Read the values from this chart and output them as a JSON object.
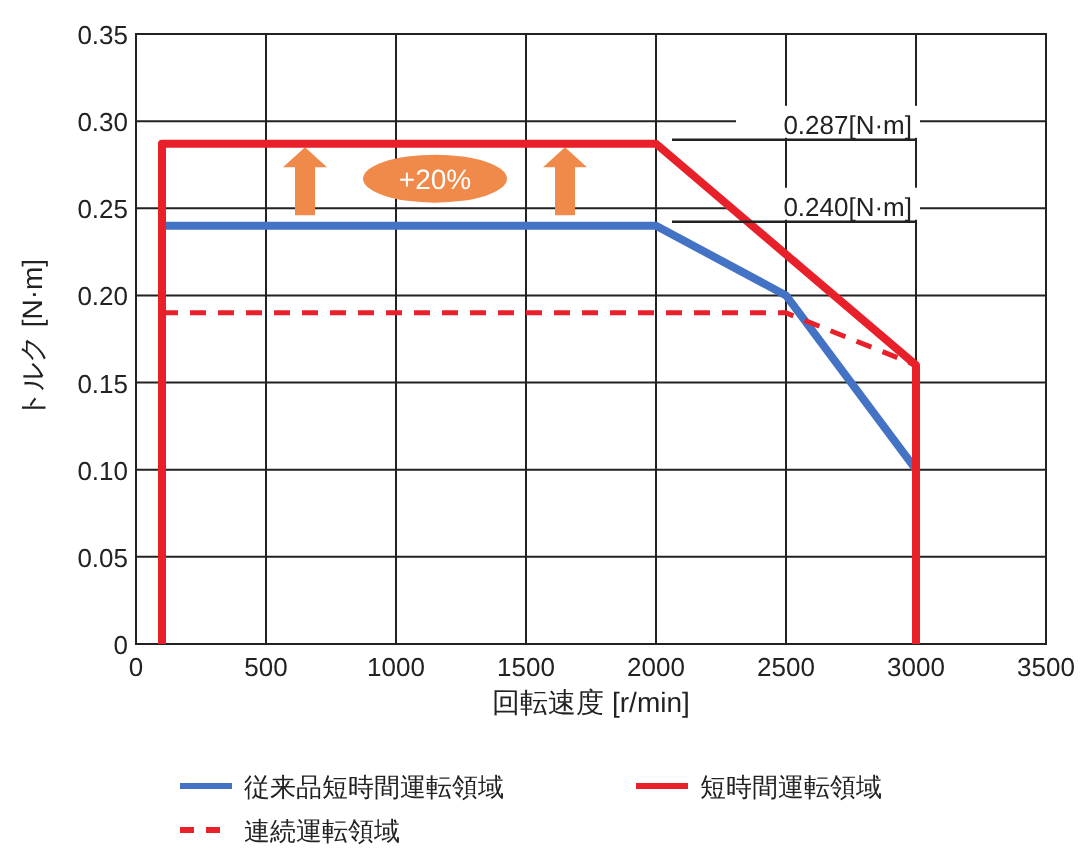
{
  "chart_data": {
    "type": "line",
    "xlabel": "回転速度 [r/min]",
    "ylabel": "トルク [N·m]",
    "xlim": [
      0,
      3500
    ],
    "xticks": [
      0,
      500,
      1000,
      1500,
      2000,
      2500,
      3000,
      3500
    ],
    "ylim": [
      0,
      0.35
    ],
    "yticks": [
      0,
      0.05,
      {
        "value": 0.1,
        "label": "0.10"
      },
      0.15,
      {
        "value": 0.2,
        "label": "0.20"
      },
      0.25,
      {
        "value": 0.3,
        "label": "0.30"
      },
      0.35
    ],
    "grid": true,
    "legend": "bottom",
    "marker": "none",
    "series": [
      {
        "name": "従来品短時間運転領域",
        "color": "#4472c4",
        "x": [
          100,
          2000,
          2500,
          3000
        ],
        "values": [
          0.24,
          0.24,
          0.2,
          0.1
        ]
      },
      {
        "name": "短時間運転領域",
        "color": "#e8202a",
        "x": [
          100,
          100,
          2000,
          3000,
          3000
        ],
        "values": [
          0,
          0.287,
          0.287,
          0.16,
          0
        ]
      },
      {
        "name": "連続運転領域",
        "color": "#e8202a",
        "line_style": "dashed",
        "x": [
          100,
          2500,
          3000
        ],
        "values": [
          0.19,
          0.19,
          0.16
        ]
      }
    ],
    "annotations": [
      {
        "text": "0.287[N·m]",
        "x": 2000,
        "y": 0.287
      },
      {
        "text": "0.240[N·m]",
        "x": 2000,
        "y": 0.24
      },
      "+20%"
    ]
  }
}
